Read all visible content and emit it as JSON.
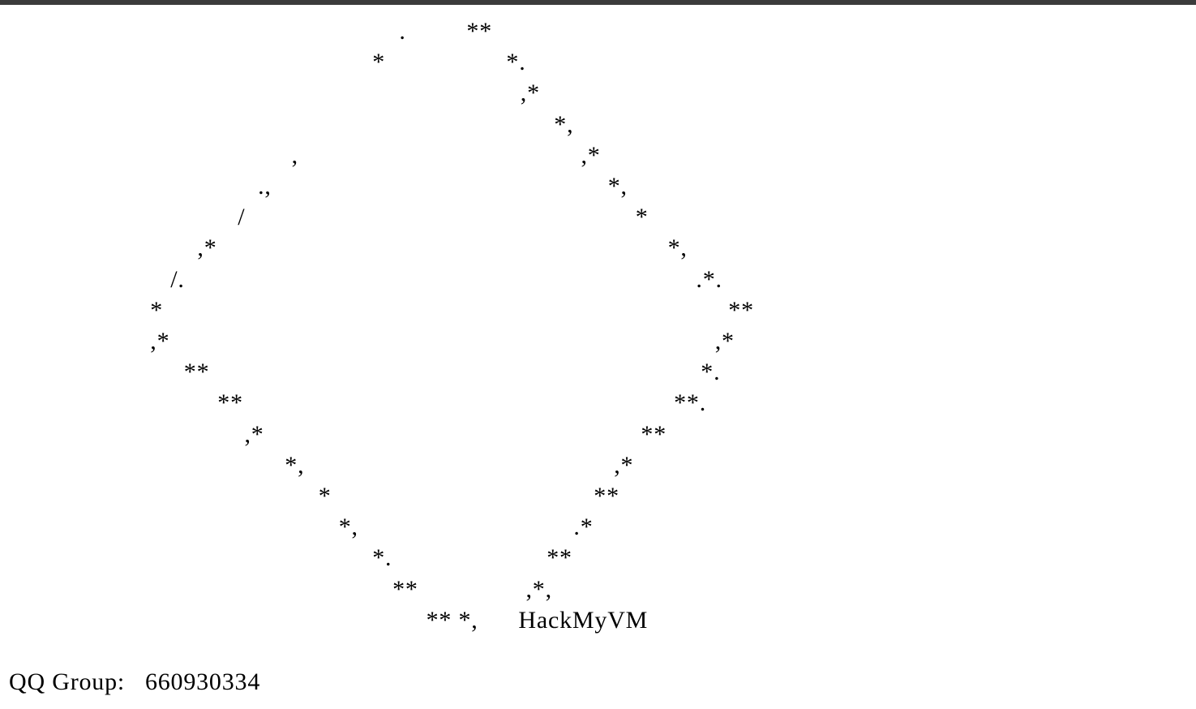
{
  "ascii_art": [
    "                                                          .         **",
    "                                                      *                  *.",
    "                                                                            ,*",
    "                                                                                 *,",
    "                                          ,                                          ,*",
    "                                     .,                                                  *,",
    "                                  /                                                          *",
    "                            ,*                                                                   *,",
    "                        /.                                                                            .*.",
    "                     *                                                                                    **",
    "                     ,*                                                                                 ,*",
    "                          **                                                                         *.",
    "                               **                                                                **.",
    "                                   ,*                                                        **",
    "                                         *,                                              ,*",
    "                                              *                                       **",
    "                                                 *,                                .*",
    "                                                      *.                       **",
    "                                                         **                ,*,",
    "                                                              ** *,"
  ],
  "brand": "HackMyVM",
  "qq_label": "QQ Group:",
  "qq_number": "660930334"
}
